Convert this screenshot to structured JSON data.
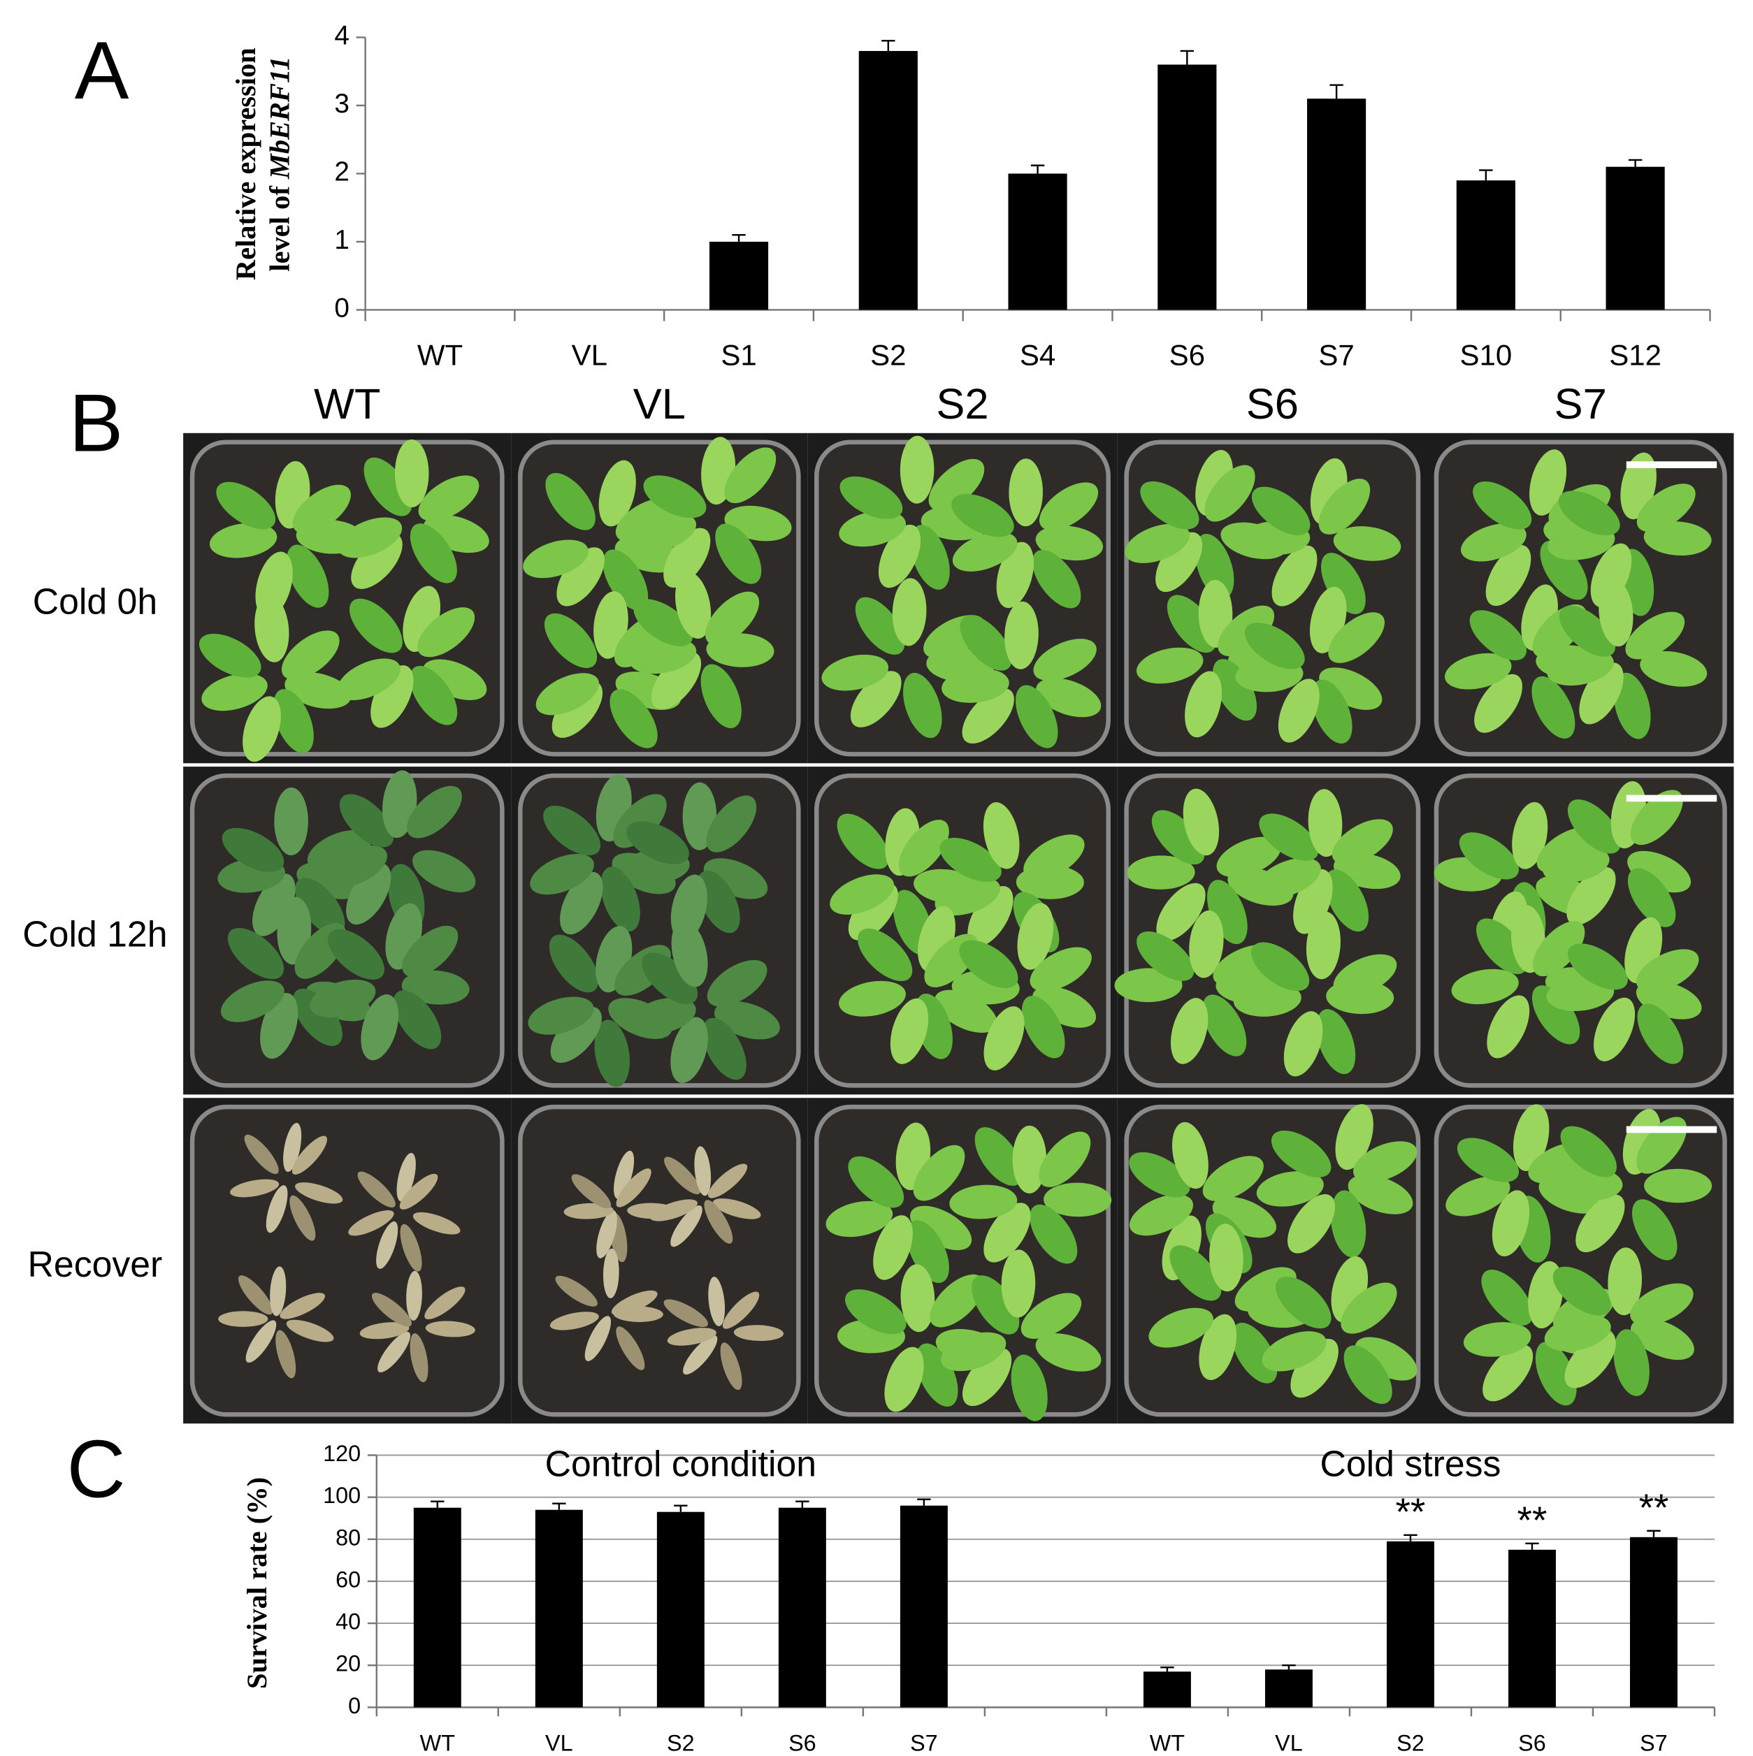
{
  "panel_labels": [
    "A",
    "B",
    "C"
  ],
  "photo_panel": {
    "columns": [
      "WT",
      "VL",
      "S2",
      "S6",
      "S7"
    ],
    "rows": [
      "Cold 0h",
      "Cold 12h",
      "Recover"
    ]
  },
  "chart_data": [
    {
      "type": "bar",
      "ylabel": {
        "line1": "Relative expression",
        "line2": "level of ",
        "gene": "MbERF11"
      },
      "categories": [
        "WT",
        "VL",
        "S1",
        "S2",
        "S4",
        "S6",
        "S7",
        "S10",
        "S12"
      ],
      "values": [
        0,
        0,
        1.0,
        3.8,
        2.0,
        3.6,
        3.1,
        1.9,
        2.1
      ],
      "errors": [
        0,
        0,
        0.1,
        0.15,
        0.12,
        0.2,
        0.2,
        0.15,
        0.1
      ],
      "color": "#000000",
      "ylim": [
        0,
        4
      ],
      "yticks": [
        0,
        1,
        2,
        3,
        4
      ],
      "grid": false
    },
    {
      "type": "bar",
      "ylabel": {
        "line1": "Survival rate (%)"
      },
      "group_labels": [
        "Control condition",
        "Cold stress"
      ],
      "categories": [
        "WT",
        "VL",
        "S2",
        "S6",
        "S7",
        null,
        "WT",
        "VL",
        "S2",
        "S6",
        "S7"
      ],
      "values": [
        95,
        94,
        93,
        95,
        96,
        null,
        17,
        18,
        79,
        75,
        81
      ],
      "errors": [
        3,
        3,
        3,
        3,
        3,
        null,
        2,
        2,
        3,
        3,
        3
      ],
      "value_annotations": [
        null,
        null,
        null,
        null,
        null,
        null,
        null,
        null,
        "**",
        "**",
        "**"
      ],
      "color": "#000000",
      "ylim": [
        0,
        120
      ],
      "yticks": [
        0,
        20,
        40,
        60,
        80,
        100,
        120
      ],
      "grid": true
    }
  ]
}
